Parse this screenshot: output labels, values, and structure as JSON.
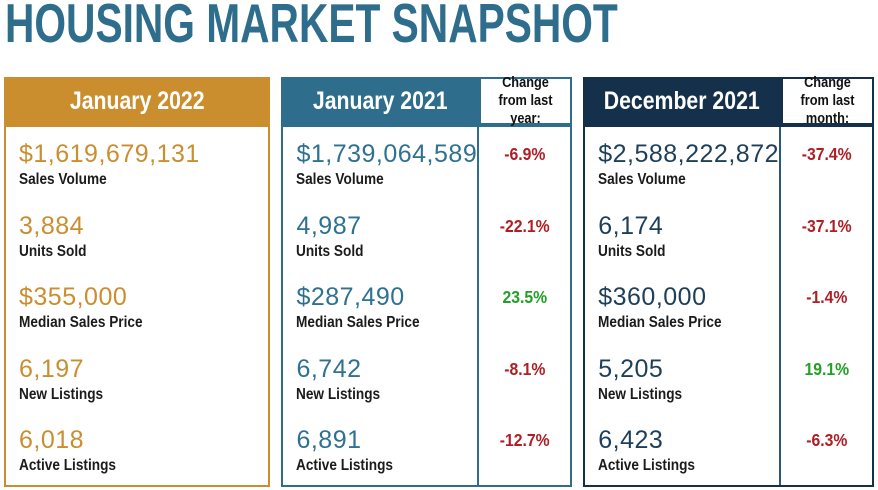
{
  "page_title": "HOUSING MARKET SNAPSHOT",
  "colors": {
    "title_teal": "#2e6d8c",
    "gold": "#cb8e2f",
    "teal": "#2e6d8c",
    "navy": "#14304a",
    "negative_red": "#ae1e24",
    "positive_green": "#23a127",
    "label_black": "#1b1b1b"
  },
  "panels": [
    {
      "title": "January 2022",
      "change_header": "",
      "rows": [
        {
          "value": "$1,619,679,131",
          "label": "Sales Volume"
        },
        {
          "value": "3,884",
          "label": "Units Sold"
        },
        {
          "value": "$355,000",
          "label": "Median Sales Price"
        },
        {
          "value": "6,197",
          "label": "New Listings"
        },
        {
          "value": "6,018",
          "label": "Active Listings"
        }
      ]
    },
    {
      "title": "January 2021",
      "change_header": "Change from last year:",
      "rows": [
        {
          "value": "$1,739,064,589",
          "label": "Sales Volume",
          "change": "-6.9%",
          "direction": "down"
        },
        {
          "value": "4,987",
          "label": "Units Sold",
          "change": "-22.1%",
          "direction": "down"
        },
        {
          "value": "$287,490",
          "label": "Median Sales Price",
          "change": "23.5%",
          "direction": "up"
        },
        {
          "value": "6,742",
          "label": "New Listings",
          "change": "-8.1%",
          "direction": "down"
        },
        {
          "value": "6,891",
          "label": "Active Listings",
          "change": "-12.7%",
          "direction": "down"
        }
      ]
    },
    {
      "title": "December 2021",
      "change_header": "Change from last month:",
      "rows": [
        {
          "value": "$2,588,222,872",
          "label": "Sales Volume",
          "change": "-37.4%",
          "direction": "down"
        },
        {
          "value": "6,174",
          "label": "Units Sold",
          "change": "-37.1%",
          "direction": "down"
        },
        {
          "value": "$360,000",
          "label": "Median Sales Price",
          "change": "-1.4%",
          "direction": "down"
        },
        {
          "value": "5,205",
          "label": "New Listings",
          "change": "19.1%",
          "direction": "up"
        },
        {
          "value": "6,423",
          "label": "Active Listings",
          "change": "-6.3%",
          "direction": "down"
        }
      ]
    }
  ],
  "chart_data": {
    "type": "table",
    "title": "HOUSING MARKET SNAPSHOT",
    "metrics": [
      "Sales Volume",
      "Units Sold",
      "Median Sales Price",
      "New Listings",
      "Active Listings"
    ],
    "columns": [
      "January 2022",
      "January 2021",
      "Change from last year",
      "December 2021",
      "Change from last month"
    ],
    "rows": [
      [
        "$1,619,679,131",
        "$1,739,064,589",
        "-6.9%",
        "$2,588,222,872",
        "-37.4%"
      ],
      [
        "3,884",
        "4,987",
        "-22.1%",
        "6,174",
        "-37.1%"
      ],
      [
        "$355,000",
        "$287,490",
        "23.5%",
        "$360,000",
        "-1.4%"
      ],
      [
        "6,197",
        "6,742",
        "-8.1%",
        "5,205",
        "19.1%"
      ],
      [
        "6,018",
        "6,891",
        "-12.7%",
        "6,423",
        "-6.3%"
      ]
    ]
  }
}
